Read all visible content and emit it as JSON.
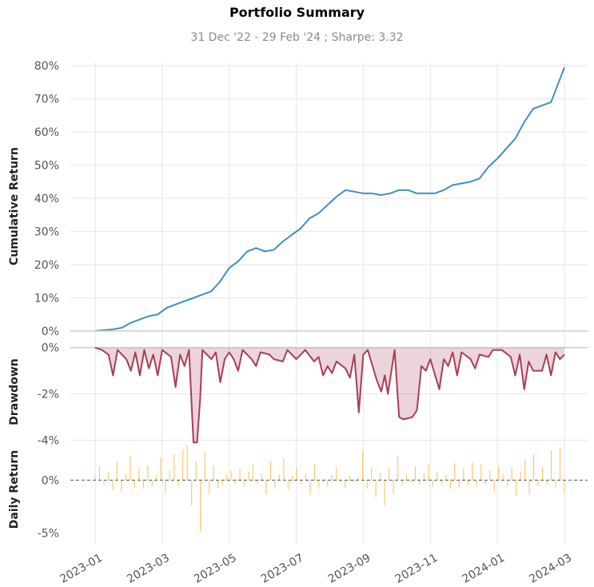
{
  "chart_data": {
    "title": "Portfolio Summary",
    "subtitle": "31 Dec '22 - 29 Feb '24 ;  Sharpe: 3.32",
    "x_ticks": [
      "2023-01",
      "2023-03",
      "2023-05",
      "2023-07",
      "2023-09",
      "2023-11",
      "2024-01",
      "2024-03"
    ],
    "panels": [
      {
        "name": "cumulative-return",
        "type": "line",
        "ylabel": "Cumulative Return",
        "ylim": [
          -0.5,
          81
        ],
        "yticks": [
          0,
          10,
          20,
          30,
          40,
          50,
          60,
          70,
          80
        ],
        "ytick_labels": [
          "0%",
          "10%",
          "20%",
          "30%",
          "40%",
          "50%",
          "60%",
          "70%",
          "80%"
        ],
        "color": "#3d8fc0",
        "points": [
          [
            0,
            0
          ],
          [
            2,
            0.3
          ],
          [
            4,
            0.5
          ],
          [
            6,
            1
          ],
          [
            8,
            2.5
          ],
          [
            10,
            3.5
          ],
          [
            12,
            4.5
          ],
          [
            14,
            5
          ],
          [
            16,
            7
          ],
          [
            18,
            8
          ],
          [
            20,
            9
          ],
          [
            22,
            10
          ],
          [
            24,
            11
          ],
          [
            26,
            12
          ],
          [
            28,
            15
          ],
          [
            30,
            19
          ],
          [
            32,
            21
          ],
          [
            34,
            24
          ],
          [
            36,
            25
          ],
          [
            38,
            24
          ],
          [
            40,
            24.5
          ],
          [
            42,
            27
          ],
          [
            44,
            29
          ],
          [
            46,
            31
          ],
          [
            48,
            34
          ],
          [
            50,
            35.5
          ],
          [
            52,
            38
          ],
          [
            54,
            40.5
          ],
          [
            56,
            42.5
          ],
          [
            58,
            42
          ],
          [
            60,
            41.5
          ],
          [
            62,
            41.5
          ],
          [
            64,
            41
          ],
          [
            66,
            41.5
          ],
          [
            68,
            42.5
          ],
          [
            70,
            42.5
          ],
          [
            72,
            41.5
          ],
          [
            74,
            41.5
          ],
          [
            76,
            41.5
          ],
          [
            78,
            42.5
          ],
          [
            80,
            44
          ],
          [
            82,
            44.5
          ],
          [
            84,
            45
          ],
          [
            86,
            46
          ],
          [
            88,
            49.5
          ],
          [
            90,
            52
          ],
          [
            92,
            55
          ],
          [
            94,
            58
          ],
          [
            96,
            63
          ],
          [
            98,
            67
          ],
          [
            100,
            68
          ],
          [
            102,
            69
          ],
          [
            104,
            76
          ],
          [
            105,
            79.5
          ]
        ]
      },
      {
        "name": "drawdown",
        "type": "area",
        "ylabel": "Drawdown",
        "ylim": [
          -4.4,
          0.3
        ],
        "yticks": [
          0,
          -2,
          -4
        ],
        "ytick_labels": [
          "0%",
          "-2%",
          "-4%"
        ],
        "color": "#a83d5a",
        "points": [
          [
            0,
            0
          ],
          [
            1.5,
            -0.1
          ],
          [
            3,
            -0.3
          ],
          [
            4,
            -1.2
          ],
          [
            5,
            -0.1
          ],
          [
            7,
            -0.5
          ],
          [
            8,
            -1
          ],
          [
            9,
            -0.2
          ],
          [
            10,
            -1.2
          ],
          [
            11,
            -0.1
          ],
          [
            12,
            -0.9
          ],
          [
            13,
            -0.3
          ],
          [
            14,
            -1.2
          ],
          [
            15,
            -0.1
          ],
          [
            17,
            -0.4
          ],
          [
            18,
            -1.7
          ],
          [
            19,
            -0.3
          ],
          [
            20,
            -0.8
          ],
          [
            21,
            -0.1
          ],
          [
            22,
            -4.1
          ],
          [
            22.8,
            -4.1
          ],
          [
            23.5,
            -2.2
          ],
          [
            24,
            -0.1
          ],
          [
            26,
            -0.5
          ],
          [
            27,
            -0.2
          ],
          [
            28,
            -1.5
          ],
          [
            29,
            -0.5
          ],
          [
            30,
            -0.2
          ],
          [
            31,
            -0.5
          ],
          [
            32,
            -1
          ],
          [
            33,
            -0.1
          ],
          [
            35,
            -0.5
          ],
          [
            36,
            -0.8
          ],
          [
            37,
            -0.2
          ],
          [
            39,
            -0.3
          ],
          [
            40,
            -0.5
          ],
          [
            42,
            -0.6
          ],
          [
            43,
            -0.1
          ],
          [
            45,
            -0.5
          ],
          [
            47,
            -0.1
          ],
          [
            49,
            -0.6
          ],
          [
            50,
            -0.4
          ],
          [
            51,
            -1.2
          ],
          [
            52,
            -0.8
          ],
          [
            53,
            -1.1
          ],
          [
            54,
            -0.6
          ],
          [
            56,
            -0.9
          ],
          [
            57,
            -1.3
          ],
          [
            58,
            -0.3
          ],
          [
            59,
            -2.8
          ],
          [
            60,
            -0.3
          ],
          [
            61,
            -0.1
          ],
          [
            63,
            -1.4
          ],
          [
            64,
            -1.9
          ],
          [
            64.8,
            -1.2
          ],
          [
            65.5,
            -2
          ],
          [
            67,
            -0.1
          ],
          [
            68,
            -3.0
          ],
          [
            69,
            -3.1
          ],
          [
            71,
            -3.0
          ],
          [
            72,
            -2.7
          ],
          [
            73,
            -0.8
          ],
          [
            74,
            -1
          ],
          [
            75,
            -0.5
          ],
          [
            77,
            -1.8
          ],
          [
            78,
            -0.5
          ],
          [
            79,
            -0.8
          ],
          [
            80,
            -0.2
          ],
          [
            81,
            -1.2
          ],
          [
            82,
            -0.2
          ],
          [
            84,
            -0.5
          ],
          [
            85,
            -0.9
          ],
          [
            86,
            -0.3
          ],
          [
            88,
            -0.4
          ],
          [
            89,
            -0.1
          ],
          [
            91,
            -0.1
          ],
          [
            93,
            -0.4
          ],
          [
            94,
            -1.2
          ],
          [
            95,
            -0.3
          ],
          [
            96,
            -1.8
          ],
          [
            97,
            -0.6
          ],
          [
            98,
            -1
          ],
          [
            100,
            -1
          ],
          [
            101,
            -0.3
          ],
          [
            102,
            -1.2
          ],
          [
            103,
            -0.2
          ],
          [
            104,
            -0.5
          ],
          [
            105,
            -0.3
          ]
        ]
      },
      {
        "name": "daily-return",
        "type": "bar",
        "ylabel": "Daily Return",
        "ylim": [
          -5.4,
          3.2
        ],
        "yticks": [
          0,
          -5
        ],
        "ytick_labels": [
          "0%",
          "-5%"
        ],
        "color": "#fbc96a",
        "baseline_color": "#555555",
        "values": [
          0.5,
          1.3,
          -0.4,
          0.8,
          -0.9,
          1.7,
          -1.1,
          0.6,
          2.3,
          -0.7,
          1.1,
          -0.8,
          1.4,
          -0.6,
          0.5,
          2.1,
          -1.3,
          0.9,
          2.4,
          -0.5,
          2.9,
          3.3,
          -2.4,
          1.8,
          -4.8,
          2.7,
          -1.3,
          1.4,
          -0.8,
          -0.4,
          0.5,
          0.9,
          -0.3,
          1.1,
          -0.6,
          0.8,
          1.5,
          -0.3,
          0.6,
          -1.3,
          1.8,
          -0.8,
          0.5,
          2,
          -0.9,
          0.4,
          1.2,
          -0.4,
          0.6,
          -1.4,
          1.5,
          -0.7,
          -0.2,
          -0.6,
          0.5,
          1.2,
          -0.2,
          -0.7,
          0.4,
          -0.2,
          0.3,
          2.8,
          -0.8,
          1.2,
          -1.6,
          0.7,
          -2.4,
          1.1,
          -1.3,
          2.3,
          -0.6,
          0.5,
          -0.2,
          1.3,
          -0.4,
          0.6,
          1.5,
          -0.6,
          0.8,
          -0.4,
          0.5,
          -0.8,
          1.6,
          -0.7,
          1.1,
          -0.5,
          1.7,
          -0.6,
          1.5,
          -0.4,
          0.9,
          -1.1,
          1.3,
          0.6,
          -0.6,
          1.2,
          -1.5,
          0.8,
          2,
          -1.3,
          2.4,
          -0.6,
          1.2,
          -0.4,
          2.8,
          -0.7,
          3.1,
          -1.2
        ]
      }
    ]
  }
}
